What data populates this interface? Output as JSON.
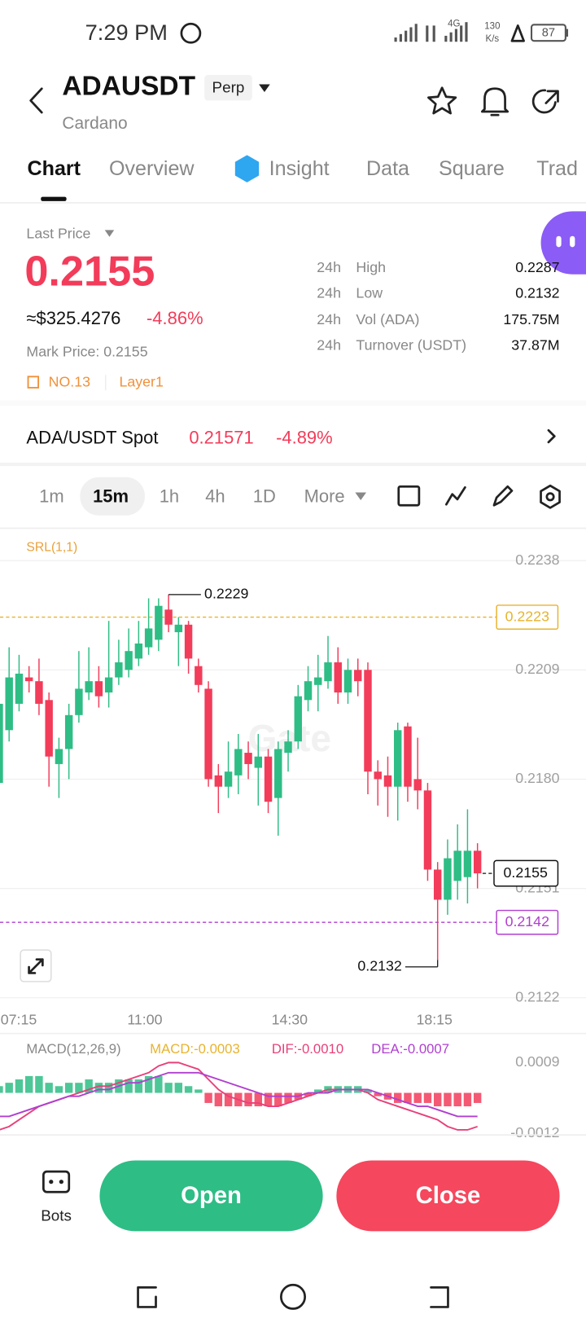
{
  "status_bar": {
    "time": "7:29 PM",
    "network": "4G",
    "speed_value": "130",
    "speed_unit": "K/s",
    "battery": "87"
  },
  "header": {
    "symbol": "ADAUSDT",
    "badge": "Perp",
    "name": "Cardano"
  },
  "tabs": [
    "Chart",
    "Overview",
    "Insight",
    "Data",
    "Square",
    "Trad"
  ],
  "ticker": {
    "last_price_label": "Last Price",
    "last_price": "0.2155",
    "usd_value": "≈$325.4276",
    "change": "-4.86%",
    "mark_price": "Mark Price: 0.2155",
    "rank": "NO.13",
    "tag": "Layer1",
    "stats": [
      {
        "period": "24h",
        "label": "High",
        "value": "0.2287"
      },
      {
        "period": "24h",
        "label": "Low",
        "value": "0.2132"
      },
      {
        "period": "24h",
        "label": "Vol (ADA)",
        "value": "175.75M"
      },
      {
        "period": "24h",
        "label": "Turnover (USDT)",
        "value": "37.87M"
      }
    ]
  },
  "spot": {
    "pair": "ADA/USDT Spot",
    "price": "0.21571",
    "change": "-4.89%"
  },
  "intervals": [
    "1m",
    "15m",
    "1h",
    "4h",
    "1D",
    "More"
  ],
  "chart_data": {
    "type": "candlestick",
    "indicator_label": "SRL(1,1)",
    "watermark": "Gate",
    "up_color": "#2ebd85",
    "down_color": "#f23c5a",
    "ylim": [
      0.2119,
      0.2246
    ],
    "yticks": [
      0.2238,
      0.2209,
      {
        "value": 0.218,
        "label": "0.2180"
      },
      0.2151,
      0.2122
    ],
    "grid": true,
    "x_labels": [
      "07:15",
      "11:00",
      "14:30",
      "18:15"
    ],
    "open": [
      0.2179,
      0.2193,
      0.22,
      0.2207,
      0.2206,
      0.2201,
      0.2184,
      0.2188,
      0.2197,
      0.2203,
      0.2206,
      0.2203,
      0.2207,
      0.2209,
      0.2212,
      0.2215,
      0.2217,
      0.2225,
      0.2219,
      0.2221,
      0.221,
      0.2204,
      0.2181,
      0.2178,
      0.2181,
      0.2187,
      0.2183,
      0.2186,
      0.2175,
      0.2187,
      0.219,
      0.2201,
      0.2205,
      0.2206,
      0.2211,
      0.2203,
      0.2209,
      0.2209,
      0.2182,
      0.2181,
      0.2178,
      0.2194,
      0.218,
      0.2177,
      0.2156,
      0.2148,
      0.2153,
      0.2154,
      0.2161
    ],
    "high": [
      0.2203,
      0.2215,
      0.2213,
      0.221,
      0.2212,
      0.2203,
      0.2191,
      0.22,
      0.2214,
      0.2215,
      0.221,
      0.2222,
      0.2217,
      0.222,
      0.2222,
      0.2228,
      0.2228,
      0.2229,
      0.2223,
      0.2222,
      0.2212,
      0.2206,
      0.2184,
      0.219,
      0.2192,
      0.219,
      0.2192,
      0.2188,
      0.219,
      0.2193,
      0.2205,
      0.221,
      0.2213,
      0.2218,
      0.2215,
      0.2212,
      0.2212,
      0.2211,
      0.2185,
      0.2186,
      0.2195,
      0.2195,
      0.2191,
      0.2179,
      0.2158,
      0.2164,
      0.2168,
      0.2172,
      0.2163
    ],
    "low": [
      0.2177,
      0.219,
      0.2198,
      0.2203,
      0.2197,
      0.2178,
      0.2175,
      0.218,
      0.2195,
      0.2201,
      0.2199,
      0.2199,
      0.2205,
      0.2207,
      0.221,
      0.2213,
      0.2214,
      0.2219,
      0.221,
      0.2208,
      0.2203,
      0.2178,
      0.2171,
      0.2175,
      0.2176,
      0.218,
      0.2173,
      0.2171,
      0.2165,
      0.2182,
      0.2188,
      0.2198,
      0.2198,
      0.2204,
      0.22,
      0.22,
      0.2202,
      0.2176,
      0.2173,
      0.217,
      0.2169,
      0.2174,
      0.2172,
      0.2153,
      0.2132,
      0.2144,
      0.2148,
      0.2147,
      0.2151
    ],
    "close": [
      0.22,
      0.2207,
      0.2208,
      0.2206,
      0.22,
      0.2186,
      0.2188,
      0.2197,
      0.2204,
      0.2206,
      0.2202,
      0.2207,
      0.2211,
      0.2214,
      0.2216,
      0.222,
      0.2226,
      0.2221,
      0.2221,
      0.2212,
      0.2205,
      0.218,
      0.2178,
      0.2182,
      0.2188,
      0.2184,
      0.2186,
      0.2174,
      0.2188,
      0.219,
      0.2202,
      0.2206,
      0.2207,
      0.2211,
      0.2203,
      0.2209,
      0.2206,
      0.2182,
      0.218,
      0.2178,
      0.2193,
      0.2178,
      0.2177,
      0.2156,
      0.2148,
      0.2159,
      0.2161,
      0.2161,
      0.2155
    ],
    "high_marker": 0.2229,
    "low_marker": 0.2132,
    "last_price": 0.2155,
    "price_lines": [
      {
        "value": 0.2223,
        "color": "#e8b32e"
      },
      {
        "value": 0.2142,
        "color": "#b03fd0"
      }
    ],
    "macd": {
      "label": "MACD(12,26,9)",
      "macd_label": "MACD:-0.0003",
      "dif_label": "DIF:-0.0010",
      "dea_label": "DEA:-0.0007",
      "macd_color": "#e8b32e",
      "dif_color": "#e8407a",
      "dea_color": "#b03fd0",
      "ylim": [
        -0.00125,
        0.00108
      ],
      "yticks": [
        0.0009,
        -0.0012
      ],
      "histogram": [
        0.0002,
        0.0003,
        0.0004,
        0.0005,
        0.0005,
        0.0003,
        0.0002,
        0.0003,
        0.0003,
        0.0004,
        0.0003,
        0.0003,
        0.0004,
        0.0004,
        0.0004,
        0.0005,
        0.0005,
        0.0003,
        0.0003,
        0.0002,
        0.0001,
        -0.0003,
        -0.0004,
        -0.0004,
        -0.0004,
        -0.0004,
        -0.0004,
        -0.0004,
        -0.0004,
        -0.0003,
        -0.0002,
        -0.0001,
        0.0001,
        0.0002,
        0.0002,
        0.0002,
        0.0002,
        0.0001,
        -0.0001,
        -0.0002,
        -0.0003,
        -0.0003,
        -0.0003,
        -0.0003,
        -0.0004,
        -0.0004,
        -0.0004,
        -0.0004,
        -0.0003
      ],
      "dif": [
        -0.0011,
        -0.001,
        -0.0008,
        -0.0006,
        -0.0004,
        -0.0003,
        -0.0002,
        -0.0001,
        0.0,
        0.0001,
        0.0002,
        0.0002,
        0.0003,
        0.0004,
        0.0005,
        0.0006,
        0.0008,
        0.0009,
        0.0009,
        0.0008,
        0.0007,
        0.0004,
        0.0001,
        -0.0001,
        -0.0002,
        -0.0003,
        -0.0003,
        -0.0004,
        -0.0004,
        -0.0003,
        -0.0002,
        -0.0001,
        0.0,
        0.0001,
        0.0001,
        0.0001,
        0.0001,
        0.0,
        -0.0002,
        -0.0003,
        -0.0004,
        -0.0005,
        -0.0006,
        -0.0007,
        -0.0008,
        -0.001,
        -0.0011,
        -0.0011,
        -0.001
      ],
      "dea": [
        -0.0007,
        -0.0007,
        -0.0006,
        -0.0005,
        -0.0004,
        -0.0003,
        -0.0002,
        -0.0001,
        -0.0001,
        0.0,
        0.0001,
        0.0001,
        0.0002,
        0.0003,
        0.0003,
        0.0004,
        0.0005,
        0.0006,
        0.0006,
        0.0006,
        0.0006,
        0.0005,
        0.0004,
        0.0003,
        0.0002,
        0.0001,
        0.0,
        -0.0001,
        -0.0001,
        -0.0001,
        -0.0001,
        0.0,
        0.0,
        0.0,
        0.0001,
        0.0001,
        0.0001,
        0.0001,
        0.0,
        -0.0001,
        -0.0002,
        -0.0003,
        -0.0004,
        -0.0004,
        -0.0005,
        -0.0006,
        -0.0007,
        -0.0007,
        -0.0007
      ]
    }
  },
  "bottom": {
    "bots": "Bots",
    "open": "Open",
    "close": "Close"
  }
}
